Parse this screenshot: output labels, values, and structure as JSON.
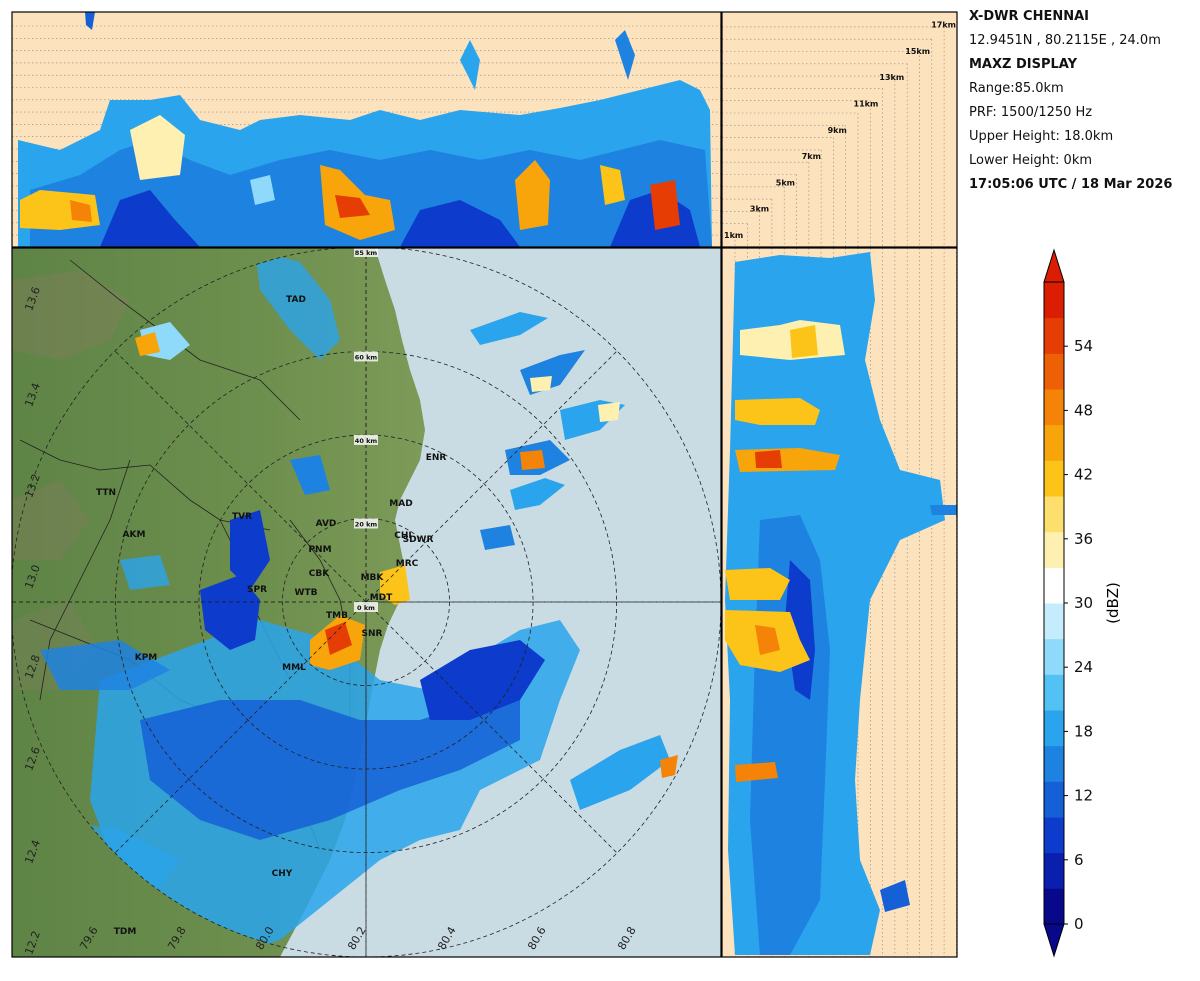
{
  "info": {
    "station": "X-DWR CHENNAI",
    "coords": "12.9451N , 80.2115E , 24.0m",
    "display": "MAXZ DISPLAY",
    "range": "Range:85.0km",
    "prf": "PRF: 1500/1250 Hz",
    "upper_height": "Upper Height: 18.0km",
    "lower_height": "Lower Height: 0km",
    "timestamp": "17:05:06 UTC / 18 Mar 2026"
  },
  "colorbar": {
    "label": "(dBZ)",
    "ticks": [
      "0",
      "6",
      "12",
      "18",
      "24",
      "30",
      "36",
      "42",
      "48",
      "54"
    ],
    "colors": [
      "#08088a",
      "#0a1fae",
      "#0d3bcb",
      "#1560d6",
      "#1e82e0",
      "#2aa4ec",
      "#52c2f5",
      "#8fd9fa",
      "#c5ecfc",
      "#ffffff",
      "#fdf0b0",
      "#fddf6e",
      "#fcc418",
      "#f8a50c",
      "#f48307",
      "#ee6005",
      "#e53d03",
      "#db1e02"
    ]
  },
  "range_rings": {
    "labels": [
      "0 km",
      "20 km",
      "40 km",
      "60 km",
      "85 km"
    ]
  },
  "map": {
    "lat_ticks": [
      "13.6",
      "13.4",
      "13.2",
      "13.0",
      "12.8",
      "12.6",
      "12.4",
      "12.2"
    ],
    "lon_ticks": [
      "79.6",
      "79.8",
      "80.0",
      "80.2",
      "80.4",
      "80.6",
      "80.8"
    ],
    "places": [
      "TAD",
      "ENR",
      "TTN",
      "TVR",
      "AVD",
      "MAD",
      "AKM",
      "CHI",
      "SDWR",
      "PNM",
      "MRC",
      "CBK",
      "MBK",
      "SPR",
      "WTB",
      "MDT",
      "TMB",
      "SNR",
      "KPM",
      "MML",
      "CHY",
      "TDM"
    ]
  },
  "height_labels": [
    "17km",
    "15km",
    "13km",
    "11km",
    "9km",
    "7km",
    "5km",
    "3km",
    "1km"
  ],
  "colors": {
    "land": "#6d8f4e",
    "sea": "#c9dce4",
    "panel_bg": "#fde3bd"
  }
}
